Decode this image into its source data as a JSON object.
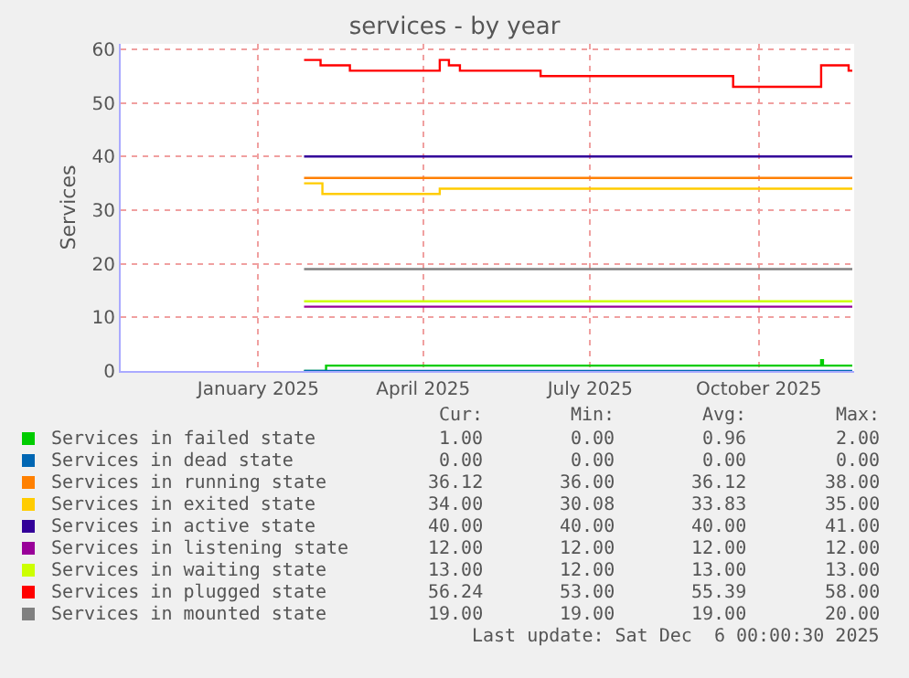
{
  "chart_data": {
    "type": "step",
    "title": "services - by year",
    "ylabel": "Services",
    "xlim": [
      "2024-11-01",
      "2025-12-06"
    ],
    "xticks": [
      {
        "value": "2025-01-15",
        "label": "January 2025"
      },
      {
        "value": "2025-04-15",
        "label": "April 2025"
      },
      {
        "value": "2025-07-15",
        "label": "July 2025"
      },
      {
        "value": "2025-10-15",
        "label": "October 2025"
      }
    ],
    "ylim": [
      0,
      61
    ],
    "yticks": [
      0,
      10,
      20,
      30,
      40,
      50,
      60
    ],
    "grid": true,
    "legend": "bottom",
    "line_style": "solid",
    "marker": "none",
    "series": [
      {
        "name": "Services in failed state",
        "color": "#00cc00",
        "x": [
          "2025-02-09",
          "2025-02-21",
          "2025-11-18",
          "2025-11-19",
          "2025-12-05"
        ],
        "values": [
          0,
          1,
          2,
          1,
          1
        ]
      },
      {
        "name": "Services in dead state",
        "color": "#0066b3",
        "x": [
          "2025-02-09",
          "2025-12-05"
        ],
        "values": [
          0,
          0
        ]
      },
      {
        "name": "Services in running state",
        "color": "#ff8000",
        "x": [
          "2025-02-09",
          "2025-12-05"
        ],
        "values": [
          36,
          36
        ]
      },
      {
        "name": "Services in exited state",
        "color": "#ffcc00",
        "x": [
          "2025-02-09",
          "2025-02-19",
          "2025-04-24",
          "2025-12-05"
        ],
        "values": [
          35,
          33,
          34,
          34
        ]
      },
      {
        "name": "Services in active state",
        "color": "#330099",
        "x": [
          "2025-02-09",
          "2025-12-05"
        ],
        "values": [
          40,
          40
        ]
      },
      {
        "name": "Services in listening state",
        "color": "#990099",
        "x": [
          "2025-02-09",
          "2025-12-05"
        ],
        "values": [
          12,
          12
        ]
      },
      {
        "name": "Services in waiting state",
        "color": "#ccff00",
        "x": [
          "2025-02-09",
          "2025-12-05"
        ],
        "values": [
          13,
          13
        ]
      },
      {
        "name": "Services in plugged state",
        "color": "#ff0000",
        "x": [
          "2025-02-09",
          "2025-02-18",
          "2025-03-06",
          "2025-04-24",
          "2025-04-29",
          "2025-05-05",
          "2025-06-18",
          "2025-10-01",
          "2025-11-18",
          "2025-12-03",
          "2025-12-05"
        ],
        "values": [
          58,
          57,
          56,
          58,
          57,
          56,
          55,
          53,
          57,
          56,
          56
        ]
      },
      {
        "name": "Services in mounted state",
        "color": "#808080",
        "x": [
          "2025-02-09",
          "2025-12-05"
        ],
        "values": [
          19,
          19
        ]
      }
    ],
    "annotations": [
      "Cur:",
      "Min:",
      "Avg:",
      "Max:",
      "1.00",
      "0.00",
      "0.96",
      "2.00",
      "0.00",
      "0.00",
      "0.00",
      "0.00",
      "36.12",
      "36.00",
      "36.12",
      "38.00",
      "34.00",
      "30.08",
      "33.83",
      "35.00",
      "40.00",
      "40.00",
      "40.00",
      "41.00",
      "12.00",
      "12.00",
      "12.00",
      "12.00",
      "13.00",
      "12.00",
      "13.00",
      "13.00",
      "56.24",
      "53.00",
      "55.39",
      "58.00",
      "19.00",
      "19.00",
      "19.00",
      "20.00",
      "Last update: Sat Dec  6 00:00:30 2025"
    ]
  }
}
